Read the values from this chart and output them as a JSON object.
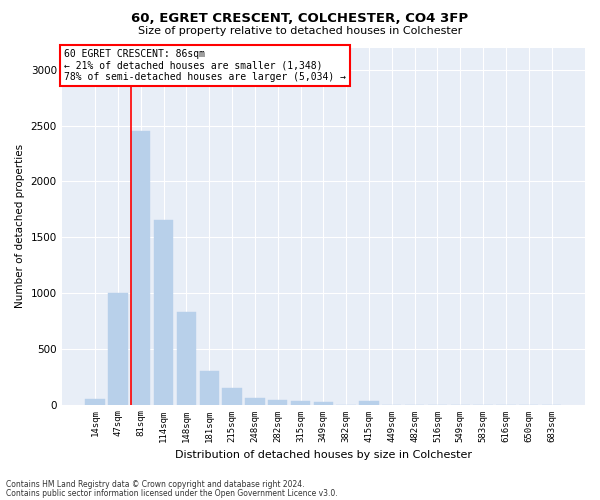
{
  "title1": "60, EGRET CRESCENT, COLCHESTER, CO4 3FP",
  "title2": "Size of property relative to detached houses in Colchester",
  "xlabel": "Distribution of detached houses by size in Colchester",
  "ylabel": "Number of detached properties",
  "categories": [
    "14sqm",
    "47sqm",
    "81sqm",
    "114sqm",
    "148sqm",
    "181sqm",
    "215sqm",
    "248sqm",
    "282sqm",
    "315sqm",
    "349sqm",
    "382sqm",
    "415sqm",
    "449sqm",
    "482sqm",
    "516sqm",
    "549sqm",
    "583sqm",
    "616sqm",
    "650sqm",
    "683sqm"
  ],
  "values": [
    50,
    1000,
    2450,
    1650,
    830,
    300,
    150,
    55,
    45,
    35,
    25,
    0,
    35,
    0,
    0,
    0,
    0,
    0,
    0,
    0,
    0
  ],
  "bar_color": "#b8d0ea",
  "bar_edgecolor": "#b8d0ea",
  "red_line_index": 2,
  "ylim": [
    0,
    3200
  ],
  "yticks": [
    0,
    500,
    1000,
    1500,
    2000,
    2500,
    3000
  ],
  "annotation_title": "60 EGRET CRESCENT: 86sqm",
  "annotation_line1": "← 21% of detached houses are smaller (1,348)",
  "annotation_line2": "78% of semi-detached houses are larger (5,034) →",
  "footer1": "Contains HM Land Registry data © Crown copyright and database right 2024.",
  "footer2": "Contains public sector information licensed under the Open Government Licence v3.0.",
  "background_color": "#e8eef7"
}
